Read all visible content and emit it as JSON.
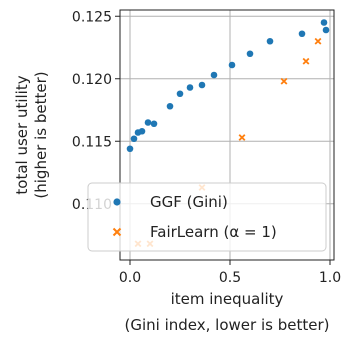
{
  "chart_data": {
    "type": "scatter",
    "xlabel": "item inequality",
    "xlabel2": "(Gini index, lower is better)",
    "ylabel": "total user utility",
    "ylabel2": "(higher is better)",
    "xlim": [
      -0.05,
      1.02
    ],
    "ylim": [
      0.1055,
      0.1255
    ],
    "xticks": [
      0.0,
      0.5,
      1.0
    ],
    "xtick_labels": [
      "0.0",
      "0.5",
      "1.0"
    ],
    "yticks": [
      0.11,
      0.115,
      0.12,
      0.125
    ],
    "ytick_labels": [
      "0.110",
      "0.115",
      "0.120",
      "0.125"
    ],
    "grid": true,
    "legend_position": "lower-left",
    "series": [
      {
        "name": "GGF (Gini)",
        "marker": "circle",
        "color": "#1f77b4",
        "points": [
          {
            "x": 0.0,
            "y": 0.1144
          },
          {
            "x": 0.02,
            "y": 0.1152
          },
          {
            "x": 0.04,
            "y": 0.1157
          },
          {
            "x": 0.06,
            "y": 0.1158
          },
          {
            "x": 0.09,
            "y": 0.1165
          },
          {
            "x": 0.12,
            "y": 0.1164
          },
          {
            "x": 0.2,
            "y": 0.1178
          },
          {
            "x": 0.25,
            "y": 0.1188
          },
          {
            "x": 0.3,
            "y": 0.1193
          },
          {
            "x": 0.36,
            "y": 0.1195
          },
          {
            "x": 0.42,
            "y": 0.1203
          },
          {
            "x": 0.51,
            "y": 0.1211
          },
          {
            "x": 0.6,
            "y": 0.122
          },
          {
            "x": 0.7,
            "y": 0.123
          },
          {
            "x": 0.86,
            "y": 0.1236
          },
          {
            "x": 0.97,
            "y": 0.1245
          },
          {
            "x": 0.98,
            "y": 0.1239
          }
        ]
      },
      {
        "name": "FairLearn (α = 1)",
        "marker": "x",
        "color": "#ff7f0e",
        "points": [
          {
            "x": 0.04,
            "y": 0.1068
          },
          {
            "x": 0.1,
            "y": 0.1068
          },
          {
            "x": 0.36,
            "y": 0.1113
          },
          {
            "x": 0.56,
            "y": 0.1153
          },
          {
            "x": 0.77,
            "y": 0.1198
          },
          {
            "x": 0.88,
            "y": 0.1214
          },
          {
            "x": 0.94,
            "y": 0.123
          }
        ]
      }
    ]
  },
  "legend": {
    "entries": [
      {
        "text": "GGF (Gini)",
        "marker": "circle",
        "color": "#1f77b4"
      },
      {
        "text": "FairLearn (α = 1)",
        "marker": "x",
        "color": "#ff7f0e"
      }
    ]
  }
}
